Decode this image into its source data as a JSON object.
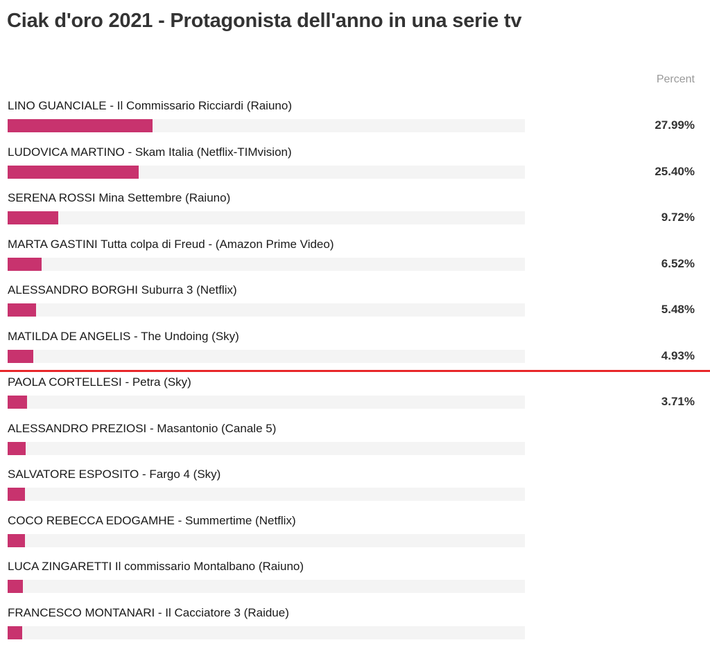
{
  "chart_data": {
    "type": "bar",
    "orientation": "horizontal",
    "title": "Ciak d'oro 2021 - Protagonista dell'anno in una serie tv",
    "value_header": "Percent",
    "xlim": [
      0,
      100
    ],
    "bar_color": "#c8336e",
    "track_color": "#f4f4f4",
    "cutoff_line_color": "#e8272a",
    "cutoff_after_index": 5,
    "categories": [
      "LINO GUANCIALE - Il Commissario Ricciardi (Raiuno)",
      "LUDOVICA MARTINO - Skam Italia (Netflix-TIMvision)",
      "SERENA ROSSI Mina Settembre (Raiuno)",
      "MARTA GASTINI Tutta colpa di Freud - (Amazon Prime Video)",
      "ALESSANDRO BORGHI Suburra 3 (Netflix)",
      "MATILDA DE ANGELIS - The Undoing (Sky)",
      "PAOLA CORTELLESI - Petra (Sky)",
      "ALESSANDRO PREZIOSI - Masantonio (Canale 5)",
      "SALVATORE ESPOSITO - Fargo 4 (Sky)",
      "COCO REBECCA EDOGAMHE - Summertime (Netflix)",
      "LUCA ZINGARETTI Il commissario Montalbano (Raiuno)",
      "FRANCESCO MONTANARI - Il Cacciatore 3 (Raidue)"
    ],
    "values": [
      27.99,
      25.4,
      9.72,
      6.52,
      5.48,
      4.93,
      3.71,
      3.5,
      3.4,
      3.3,
      3.0,
      2.8
    ],
    "value_labels": [
      "27.99%",
      "25.40%",
      "9.72%",
      "6.52%",
      "5.48%",
      "4.93%",
      "3.71%",
      "",
      "",
      "",
      "",
      ""
    ]
  }
}
